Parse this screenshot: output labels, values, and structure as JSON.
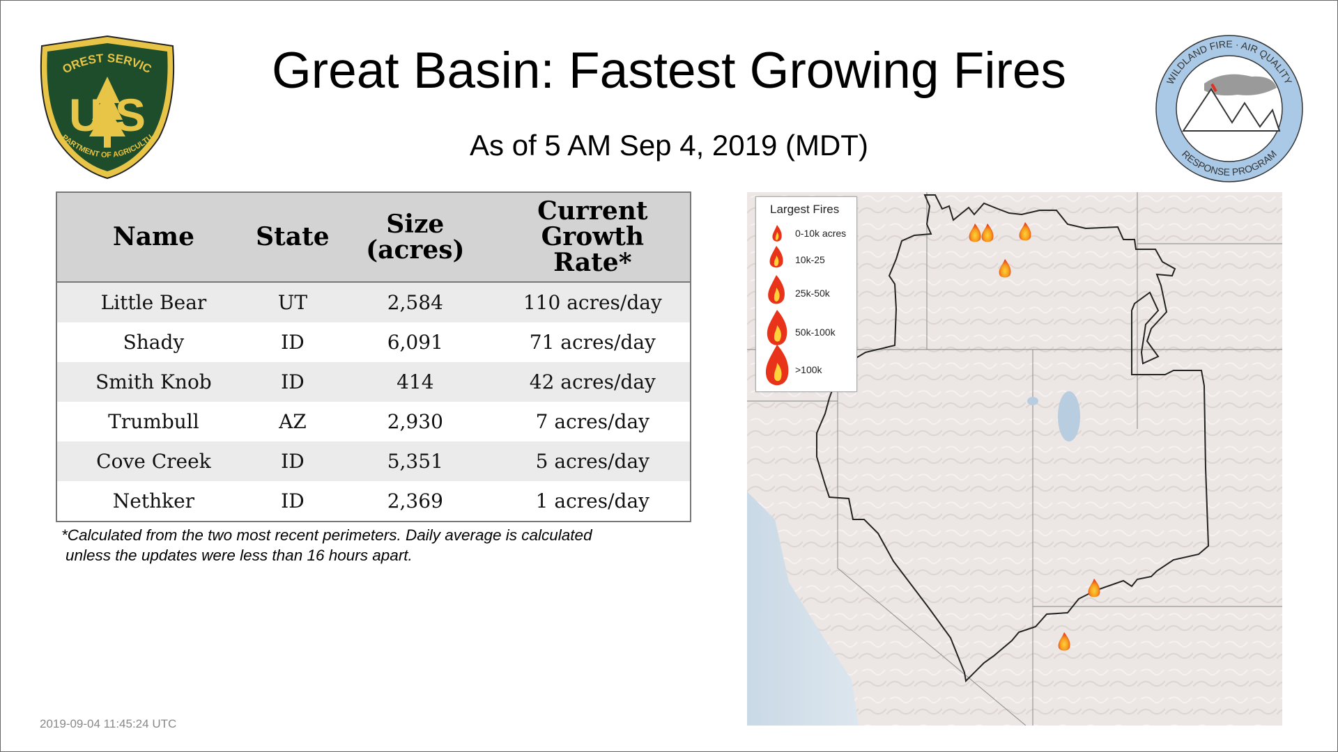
{
  "header": {
    "title": "Great Basin: Fastest Growing Fires",
    "subtitle": "As of  5 AM Sep  4, 2019 (MDT)"
  },
  "logos": {
    "left": {
      "top_text": "FOREST SERVICE",
      "letters": "U S",
      "bottom_text": "DEPARTMENT OF AGRICULTURE"
    },
    "right": {
      "top_text": "WILDLAND FIRE · AIR QUALITY",
      "bottom_text": "RESPONSE PROGRAM"
    }
  },
  "table": {
    "headers": {
      "name": "Name",
      "state": "State",
      "size_line1": "Size",
      "size_line2": "(acres)",
      "rate_line1": "Current",
      "rate_line2": "Growth",
      "rate_line3": "Rate*"
    },
    "rows": [
      {
        "name": "Little Bear",
        "state": "UT",
        "size": "2,584",
        "rate": "110 acres/day"
      },
      {
        "name": "Shady",
        "state": "ID",
        "size": "6,091",
        "rate": "71 acres/day"
      },
      {
        "name": "Smith Knob",
        "state": "ID",
        "size": "414",
        "rate": "42 acres/day"
      },
      {
        "name": "Trumbull",
        "state": "AZ",
        "size": "2,930",
        "rate": "7 acres/day"
      },
      {
        "name": "Cove Creek",
        "state": "ID",
        "size": "5,351",
        "rate": "5 acres/day"
      },
      {
        "name": "Nethker",
        "state": "ID",
        "size": "2,369",
        "rate": "1 acres/day"
      }
    ]
  },
  "footnote": {
    "line1": "*Calculated from the two most recent perimeters. Daily average is calculated",
    "line2": "unless the updates were less than 16 hours apart."
  },
  "timestamp": "2019-09-04 11:45:24 UTC",
  "legend": {
    "title": "Largest Fires",
    "items": [
      "0-10k acres",
      "10k-25",
      "25k-50k",
      "50k-100k",
      ">100k"
    ]
  },
  "colors": {
    "usfs_green": "#1e4d2b",
    "usfs_gold": "#e8c547",
    "program_blue": "#a9c9e6",
    "fire_red": "#e8321a",
    "fire_orange": "#f59a1d",
    "map_land": "#ece6e4"
  }
}
